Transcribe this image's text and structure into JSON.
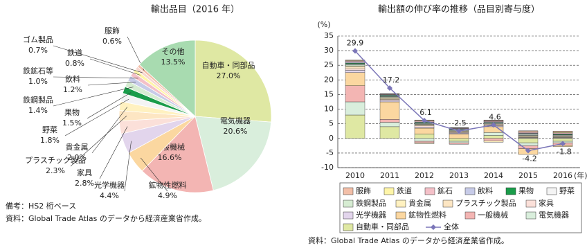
{
  "chart_data": [
    {
      "type": "pie",
      "title": "輸出品目（2016 年）",
      "categories": [
        "自動車・同部品",
        "電気機器",
        "一般機械",
        "鉱物性燃料",
        "光学機器",
        "家具",
        "プラスチック製品",
        "貴金属",
        "野菜",
        "果物",
        "鉄鋼製品",
        "飲料",
        "鉄鉱石等",
        "鉄道",
        "ゴム製品",
        "服飾",
        "その他"
      ],
      "values": [
        27.0,
        20.6,
        16.6,
        4.9,
        4.4,
        2.8,
        2.3,
        2.0,
        1.8,
        1.5,
        1.4,
        1.2,
        1.0,
        0.8,
        0.7,
        0.6,
        13.5
      ],
      "value_labels": [
        "27.0%",
        "20.6%",
        "16.6%",
        "4.9%",
        "4.4%",
        "2.8%",
        "2.3%",
        "2.0%",
        "1.8%",
        "1.5%",
        "1.4%",
        "1.2%",
        "1.0%",
        "0.8%",
        "0.7%",
        "0.6%",
        "13.5%"
      ],
      "colors": [
        "#dfe8a3",
        "#d9eedc",
        "#f3b5b3",
        "#fbd7a0",
        "#e2d5ec",
        "#fbe0d9",
        "#fde6c3",
        "#fff1c0",
        "#f4f4f4",
        "#1a9c4a",
        "#d6ecd2",
        "#c7cbe8",
        "#f4c0c8",
        "#fff5a8",
        "#f7d6cf",
        "#f3bfa8",
        "#a8dbb0"
      ],
      "notes": [
        "備考：HS2 桁ベース",
        "資料：Global Trade Atlas のデータから経済産業省作成。"
      ]
    },
    {
      "type": "bar",
      "stacked": true,
      "title": "輸出額の伸び率の推移（品目別寄与度）",
      "y_label": "(%)",
      "x_unit": "(年)",
      "categories": [
        "2010",
        "2011",
        "2012",
        "2013",
        "2014",
        "2015",
        "2016"
      ],
      "ylim": [
        -10,
        35
      ],
      "yticks": [
        -10,
        -5,
        0,
        5,
        10,
        15,
        20,
        25,
        30,
        35
      ],
      "grid": true,
      "series": [
        {
          "name": "服飾",
          "color": "#f3bfa8",
          "values": [
            0.2,
            0.1,
            0.2,
            0.1,
            0.2,
            0.3,
            0.3
          ]
        },
        {
          "name": "鉄道",
          "color": "#fff5a8",
          "values": [
            0.2,
            0.1,
            0.2,
            0.1,
            0.1,
            0.2,
            0.3
          ]
        },
        {
          "name": "鉱石",
          "color": "#f4c0c8",
          "values": [
            0.4,
            0.2,
            0.3,
            0.2,
            0.3,
            0.3,
            0.3
          ]
        },
        {
          "name": "飲料",
          "color": "#c7cbe8",
          "values": [
            0.3,
            0.2,
            0.2,
            0.2,
            0.2,
            0.2,
            0.2
          ]
        },
        {
          "name": "果物",
          "color": "#1a9c4a",
          "values": [
            0.3,
            0.3,
            0.3,
            0.2,
            0.2,
            0.2,
            0.2
          ]
        },
        {
          "name": "野菜",
          "color": "#f4f4f4",
          "values": [
            0.3,
            0.2,
            0.2,
            0.2,
            0.2,
            0.3,
            0.2
          ]
        },
        {
          "name": "鉄鋼製品",
          "color": "#d6ecd2",
          "values": [
            0.3,
            0.2,
            0.2,
            0.2,
            0.2,
            0.2,
            0.2
          ]
        },
        {
          "name": "貴金属",
          "color": "#fff1c0",
          "values": [
            0.4,
            0.4,
            -0.3,
            0.2,
            -0.5,
            0.3,
            0.2
          ]
        },
        {
          "name": "プラスチック製品",
          "color": "#fde6c3",
          "values": [
            0.6,
            0.3,
            0.4,
            0.3,
            0.3,
            0.2,
            0.2
          ]
        },
        {
          "name": "家具",
          "color": "#fbe0d9",
          "values": [
            0.5,
            0.3,
            0.5,
            0.2,
            0.3,
            0.2,
            0.2
          ]
        },
        {
          "name": "光学機器",
          "color": "#e2d5ec",
          "values": [
            0.8,
            0.5,
            0.3,
            0.3,
            0.3,
            0.2,
            0.2
          ]
        },
        {
          "name": "鉱物性燃料",
          "color": "#fbd7a0",
          "values": [
            4.5,
            6.0,
            2.0,
            1.5,
            2.0,
            -2.0,
            -0.5
          ]
        },
        {
          "name": "一般機械",
          "color": "#f3b5b3",
          "values": [
            5.5,
            1.0,
            -0.5,
            -0.5,
            -0.8,
            -1.0,
            -0.8
          ]
        },
        {
          "name": "電気機器",
          "color": "#d9eedc",
          "values": [
            4.5,
            1.5,
            -1.0,
            -0.5,
            1.0,
            -1.0,
            -0.5
          ]
        },
        {
          "name": "自動車・同部品",
          "color": "#dfe8a3",
          "values": [
            8.0,
            4.0,
            1.5,
            -1.0,
            1.0,
            -1.5,
            -1.0
          ]
        },
        {
          "name": "全体",
          "type": "line",
          "color": "#7b76b8",
          "values": [
            29.9,
            17.2,
            6.1,
            2.5,
            4.6,
            -4.2,
            -1.8
          ]
        }
      ],
      "source": "資料：Global Trade Atlas のデータから経済産業省作成。"
    }
  ]
}
